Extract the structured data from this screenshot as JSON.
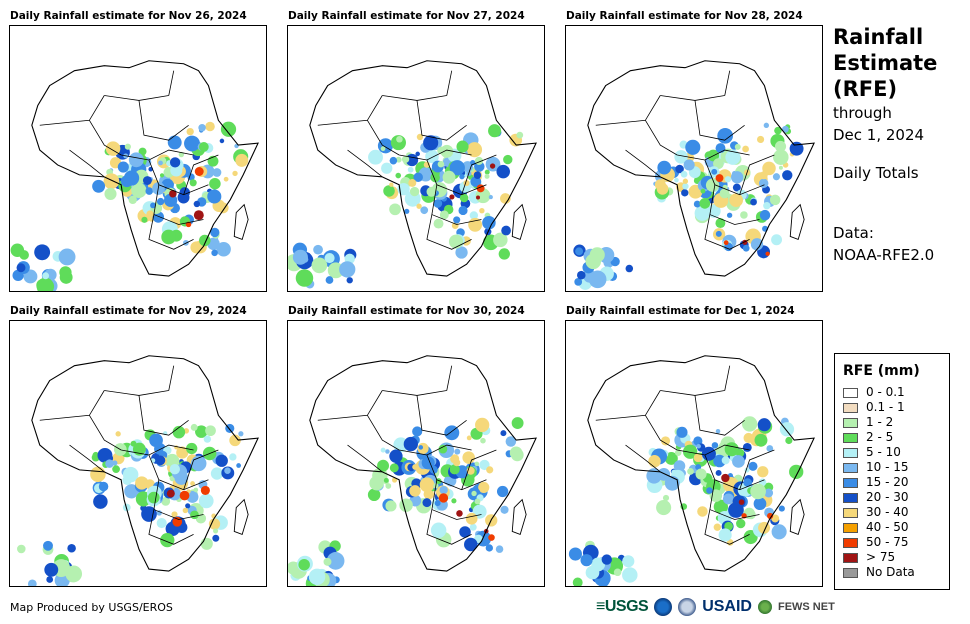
{
  "panels": [
    {
      "title": "Daily Rainfall estimate for Nov 26, 2024",
      "rain_pattern": "central-and-east-heavy, southern-ocean band"
    },
    {
      "title": "Daily Rainfall estimate for Nov 27, 2024",
      "rain_pattern": "central with mozambique channel heavy"
    },
    {
      "title": "Daily Rainfall estimate for Nov 28, 2024",
      "rain_pattern": "east and southeast heavy"
    },
    {
      "title": "Daily Rainfall estimate for Nov 29, 2024",
      "rain_pattern": "central and madagascar"
    },
    {
      "title": "Daily Rainfall estimate for Nov 30, 2024",
      "rain_pattern": "central and east coast"
    },
    {
      "title": "Daily Rainfall estimate for Dec 1, 2024",
      "rain_pattern": "east africa scattered"
    }
  ],
  "title_block": {
    "line1": "Rainfall",
    "line2": "Estimate",
    "line3": "(RFE)",
    "line4": "through",
    "line5": "Dec 1, 2024",
    "line6": "Daily Totals",
    "line7": "Data:",
    "line8": "NOAA-RFE2.0"
  },
  "legend": {
    "title": "RFE (mm)",
    "items": [
      {
        "label": "0 - 0.1",
        "color": "#ffffff"
      },
      {
        "label": "0.1 - 1",
        "color": "#f2dcc0"
      },
      {
        "label": "1 - 2",
        "color": "#b5f0b0"
      },
      {
        "label": "2 - 5",
        "color": "#5fdc5a"
      },
      {
        "label": "5 - 10",
        "color": "#b4f0f5"
      },
      {
        "label": "10 - 15",
        "color": "#7ab8f0"
      },
      {
        "label": "15 - 20",
        "color": "#3a8ce6"
      },
      {
        "label": "20 - 30",
        "color": "#1450c8"
      },
      {
        "label": "30 - 40",
        "color": "#f5d87a"
      },
      {
        "label": "40 - 50",
        "color": "#f5a000"
      },
      {
        "label": "50 - 75",
        "color": "#f03c00"
      },
      {
        "label": "> 75",
        "color": "#a01414"
      },
      {
        "label": "No Data",
        "color": "#999999"
      }
    ]
  },
  "credit": "Map Produced by USGS/EROS",
  "logos": {
    "usgs": "≡USGS",
    "usaid": "USAID",
    "fews": "FEWS NET"
  }
}
